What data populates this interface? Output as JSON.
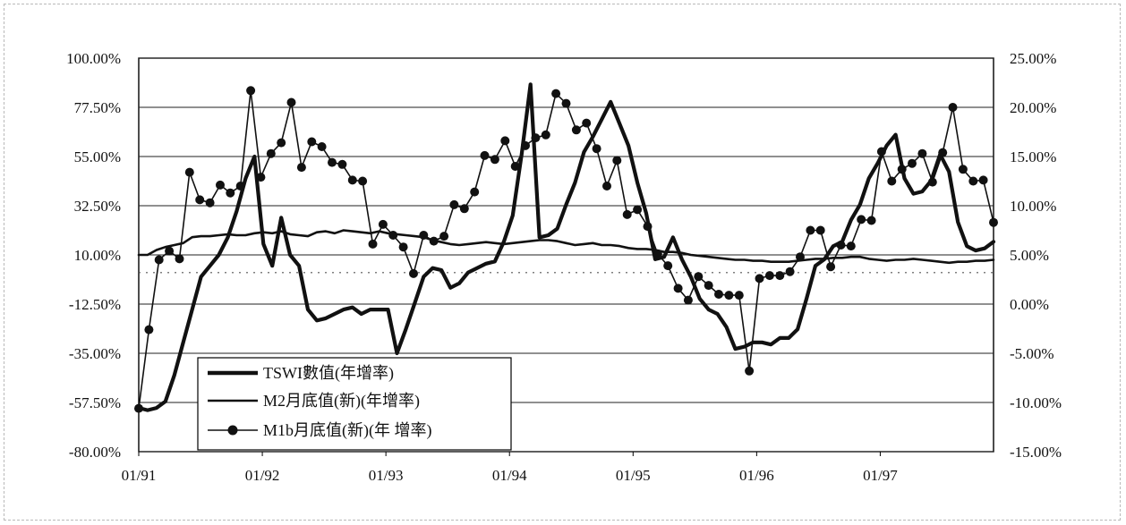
{
  "chart_data": {
    "type": "line",
    "x_labels": [
      "01/91",
      "01/92",
      "01/93",
      "01/94",
      "01/95",
      "01/96",
      "01/97"
    ],
    "x_range_months": [
      0,
      83
    ],
    "y_left": {
      "range": [
        -80,
        100
      ],
      "ticks": [
        "100.00%",
        "77.50%",
        "55.00%",
        "32.50%",
        "10.00%",
        "-12.50%",
        "-35.00%",
        "-57.50%",
        "-80.00%"
      ],
      "tick_values": [
        100,
        77.5,
        55,
        32.5,
        10,
        -12.5,
        -35,
        -57.5,
        -80
      ]
    },
    "y_right": {
      "range": [
        -15,
        25
      ],
      "ticks": [
        "25.00%",
        "20.00%",
        "15.00%",
        "10.00%",
        "5.00%",
        "0.00%",
        "-5.00%",
        "-10.00%",
        "-15.00%"
      ],
      "tick_values": [
        25,
        20,
        15,
        10,
        5,
        0,
        -5,
        -10,
        -15
      ]
    },
    "grid": true,
    "legend_position": "bottom-left",
    "series": [
      {
        "name": "TSWI數值(年增率)",
        "axis": "left",
        "style": "thick",
        "values": [
          -60,
          -61,
          -60,
          -57,
          -45,
          -30,
          -15,
          0,
          5,
          10,
          18,
          30,
          45,
          55,
          15,
          5,
          27,
          10,
          5,
          -15,
          -20,
          -19,
          -17,
          -15,
          -14,
          -17,
          -15,
          -15,
          -15,
          -35,
          -24,
          -12,
          0,
          4,
          3,
          -5,
          -3,
          2,
          4,
          6,
          7,
          16,
          28,
          56,
          88,
          18,
          19,
          22,
          33,
          43,
          57,
          64,
          72,
          80,
          70,
          60,
          43,
          29,
          8,
          9,
          18,
          8,
          0,
          -10,
          -15,
          -17,
          -23,
          -33,
          -32,
          -30,
          -30,
          -31,
          -28,
          -28,
          -24,
          -10,
          5,
          8,
          14,
          16,
          26,
          33,
          45,
          52,
          60,
          65,
          45,
          38,
          39,
          44,
          56,
          48,
          25,
          14,
          12,
          13,
          16
        ],
        "x_start": 0
      },
      {
        "name": "M2月底值(新)(年增率)",
        "axis": "right",
        "style": "thin",
        "values": [
          5.0,
          5.0,
          5.5,
          5.8,
          6.0,
          6.2,
          6.8,
          6.9,
          6.9,
          7.0,
          7.1,
          7.0,
          7.0,
          7.2,
          7.3,
          7.2,
          7.4,
          7.1,
          7.0,
          6.9,
          7.3,
          7.4,
          7.2,
          7.5,
          7.4,
          7.3,
          7.2,
          7.4,
          7.2,
          7.1,
          7.0,
          6.9,
          6.8,
          6.5,
          6.3,
          6.1,
          6.0,
          6.1,
          6.2,
          6.3,
          6.2,
          6.1,
          6.2,
          6.3,
          6.4,
          6.5,
          6.5,
          6.4,
          6.2,
          6.0,
          6.1,
          6.2,
          6.0,
          6.0,
          5.9,
          5.7,
          5.6,
          5.6,
          5.5,
          5.3,
          5.3,
          5.2,
          5.0,
          4.9,
          4.8,
          4.7,
          4.6,
          4.5,
          4.5,
          4.4,
          4.4,
          4.3,
          4.3,
          4.3,
          4.4,
          4.5,
          4.6,
          4.6,
          4.7,
          4.7,
          4.8,
          4.8,
          4.6,
          4.5,
          4.4,
          4.5,
          4.5,
          4.6,
          4.5,
          4.4,
          4.3,
          4.2,
          4.3,
          4.3,
          4.4,
          4.4,
          4.5
        ],
        "x_start": 0
      },
      {
        "name": "M1b月底值(新)(年 增率)",
        "axis": "right",
        "style": "markers",
        "values": [
          -10.6,
          -2.6,
          4.5,
          5.4,
          4.6,
          13.4,
          10.6,
          10.3,
          12.1,
          11.3,
          12.0,
          21.7,
          12.9,
          15.3,
          16.4,
          20.5,
          13.9,
          16.5,
          16.0,
          14.4,
          14.2,
          12.6,
          12.5,
          6.1,
          8.1,
          7.0,
          5.8,
          3.1,
          7.0,
          6.4,
          6.9,
          10.1,
          9.7,
          11.4,
          15.1,
          14.7,
          16.6,
          14.0,
          16.1,
          16.9,
          17.2,
          21.4,
          20.4,
          17.7,
          18.4,
          15.8,
          12.0,
          14.6,
          9.1,
          9.6,
          7.9,
          5.1,
          3.9,
          1.6,
          0.4,
          2.8,
          1.9,
          1.0,
          0.9,
          0.9,
          -6.8,
          2.6,
          2.9,
          2.9,
          3.3,
          4.8,
          7.5,
          7.5,
          3.8,
          6.0,
          5.9,
          8.6,
          8.5,
          15.5,
          12.5,
          13.7,
          14.3,
          15.3,
          12.4,
          15.4,
          20.0,
          13.7,
          12.5,
          12.6,
          8.3
        ],
        "x_start": 0
      }
    ]
  }
}
